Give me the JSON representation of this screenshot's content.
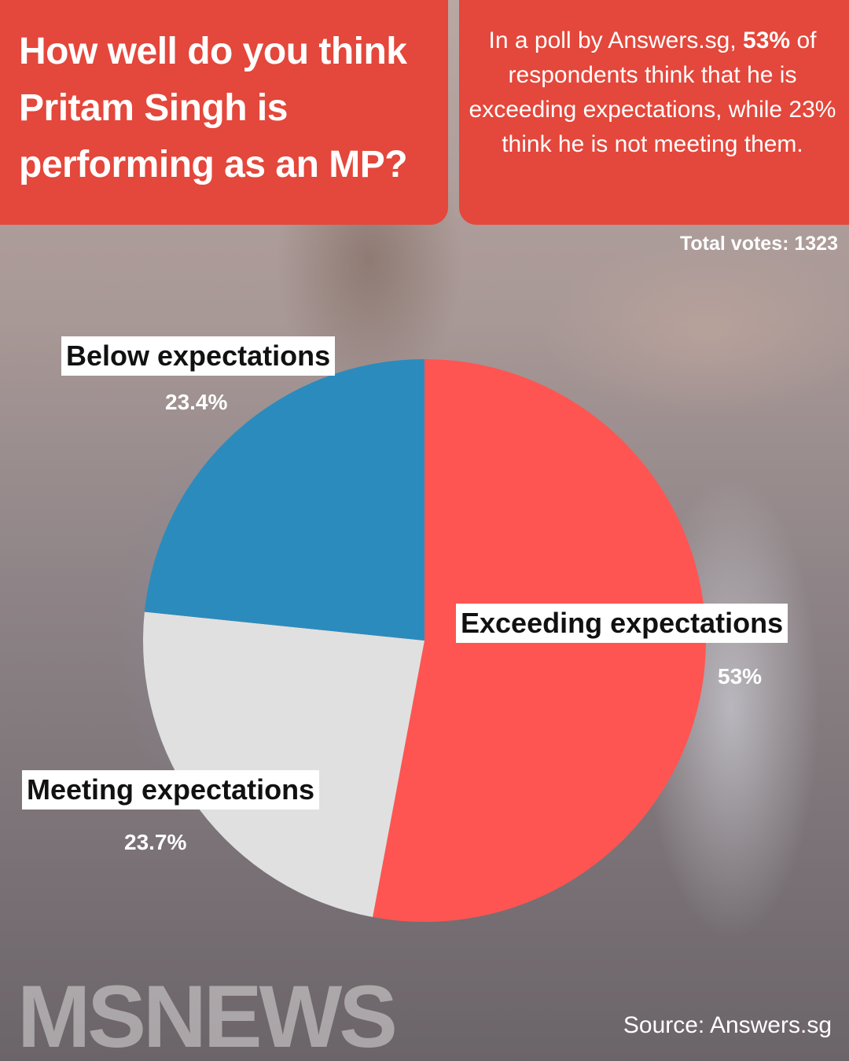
{
  "header": {
    "headline": "How well do you think Pritam Singh is performing as an MP?",
    "summary_bold": "53%",
    "summary_lead": "In a poll by Answers.sg,",
    "summary_rest": "of respondents think that he is exceeding expectations, while 23% think he is not meeting them."
  },
  "total_votes": "Total votes: 1323",
  "footer": {
    "logo": "MSNEWS",
    "source": "Source: Answers.sg"
  },
  "colors": {
    "exceeding": "#ff5552",
    "meeting": "#e0e0e0",
    "below": "#2b8bbd",
    "panel": "#e4473b"
  },
  "chart_data": {
    "type": "pie",
    "title": "How well do you think Pritam Singh is performing as an MP?",
    "slices": [
      {
        "name": "Exceeding expectations",
        "value": 53,
        "label": "53%",
        "color": "#ff5552"
      },
      {
        "name": "Meeting expectations",
        "value": 23.7,
        "label": "23.7%",
        "color": "#e0e0e0"
      },
      {
        "name": "Below expectations",
        "value": 23.4,
        "label": "23.4%",
        "color": "#2b8bbd"
      }
    ],
    "total_votes": 1323
  }
}
